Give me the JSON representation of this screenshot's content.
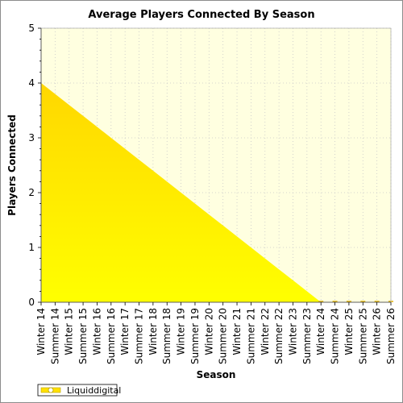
{
  "chart_data": {
    "type": "area",
    "title": "Average Players Connected By Season",
    "xlabel": "Season",
    "ylabel": "Players Connected",
    "ylim": [
      0,
      5
    ],
    "yticks": [
      0,
      1,
      2,
      3,
      4,
      5
    ],
    "grid": true,
    "legend_position": "bottom-left",
    "categories": [
      "Winter 14",
      "Summer 14",
      "Winter 15",
      "Summer 15",
      "Winter 16",
      "Summer 16",
      "Winter 17",
      "Summer 17",
      "Winter 18",
      "Summer 18",
      "Winter 19",
      "Summer 19",
      "Winter 20",
      "Summer 20",
      "Winter 21",
      "Summer 21",
      "Winter 22",
      "Summer 22",
      "Winter 23",
      "Summer 23",
      "Winter 24",
      "Summer 24",
      "Winter 25",
      "Summer 25",
      "Winter 26",
      "Summer 26"
    ],
    "series": [
      {
        "name": "Liquiddigital",
        "color": "#ffe000",
        "values": [
          4.0,
          3.8,
          3.6,
          3.4,
          3.2,
          3.0,
          2.8,
          2.6,
          2.4,
          2.2,
          2.0,
          1.8,
          1.6,
          1.4,
          1.2,
          1.0,
          0.8,
          0.6,
          0.4,
          0.2,
          0.0,
          0.0,
          0.0,
          0.0,
          0.0,
          0.0
        ]
      }
    ]
  },
  "colors": {
    "plot_background": "#ffffe0",
    "area_top": "#ffd700",
    "area_bottom": "#ffff00"
  }
}
